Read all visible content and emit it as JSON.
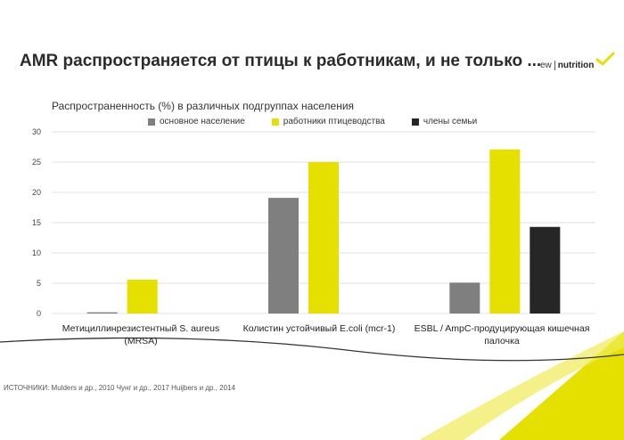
{
  "slide": {
    "title": "AMR распространяется от птицы к работникам, и не только ...",
    "logo_left": "ew",
    "logo_right": "nutrition",
    "sources": "ИСТОЧНИКИ: Mulders и др., 2010 Чунг и др., 2017 Huijbers и др., 2014"
  },
  "colors": {
    "series_gray": "#7f7f7f",
    "series_yellow": "#e6e000",
    "series_black": "#262626",
    "grid": "#d9d9d9",
    "accent": "#e6e000"
  },
  "chart_data": {
    "type": "bar",
    "title": "Распространенность (%) в различных подгруппах населения",
    "categories": [
      "Метициллинрезистентный S. aureus (MRSA)",
      "Колистин устойчивый E.coli (mcr-1)",
      "ESBL / AmpC-продуцирующая кишечная палочка"
    ],
    "series": [
      {
        "name": "основное население",
        "values": [
          0.2,
          19.1,
          5.1
        ]
      },
      {
        "name": "работники птицеводства",
        "values": [
          5.6,
          25.0,
          27.1
        ]
      },
      {
        "name": "члены семьи",
        "values": [
          0,
          0,
          14.3
        ]
      }
    ],
    "ylim": [
      0,
      30
    ],
    "yticks": [
      "0",
      "5",
      "10",
      "15",
      "20",
      "25",
      "30"
    ],
    "grid": true,
    "legend": "top-center",
    "xlabel": "",
    "ylabel": ""
  }
}
